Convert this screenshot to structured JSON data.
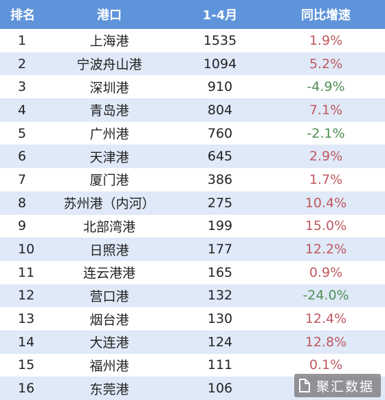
{
  "table": {
    "headers": [
      "排名",
      "港口",
      "1-4月",
      "同比增速"
    ],
    "rows": [
      {
        "rank": "1",
        "port": "上海港",
        "value": "1535",
        "growth": "1.9%",
        "dir": "pos"
      },
      {
        "rank": "2",
        "port": "宁波舟山港",
        "value": "1094",
        "growth": "5.2%",
        "dir": "pos"
      },
      {
        "rank": "3",
        "port": "深圳港",
        "value": "910",
        "growth": "-4.9%",
        "dir": "neg"
      },
      {
        "rank": "4",
        "port": "青岛港",
        "value": "804",
        "growth": "7.1%",
        "dir": "pos"
      },
      {
        "rank": "5",
        "port": "广州港",
        "value": "760",
        "growth": "-2.1%",
        "dir": "neg"
      },
      {
        "rank": "6",
        "port": "天津港",
        "value": "645",
        "growth": "2.9%",
        "dir": "pos"
      },
      {
        "rank": "7",
        "port": "厦门港",
        "value": "386",
        "growth": "1.7%",
        "dir": "pos"
      },
      {
        "rank": "8",
        "port": "苏州港（内河）",
        "value": "275",
        "growth": "10.4%",
        "dir": "pos"
      },
      {
        "rank": "9",
        "port": "北部湾港",
        "value": "199",
        "growth": "15.0%",
        "dir": "pos"
      },
      {
        "rank": "10",
        "port": "日照港",
        "value": "177",
        "growth": "12.2%",
        "dir": "pos"
      },
      {
        "rank": "11",
        "port": "连云港港",
        "value": "165",
        "growth": "0.9%",
        "dir": "pos"
      },
      {
        "rank": "12",
        "port": "营口港",
        "value": "132",
        "growth": "-24.0%",
        "dir": "neg"
      },
      {
        "rank": "13",
        "port": "烟台港",
        "value": "130",
        "growth": "12.4%",
        "dir": "pos"
      },
      {
        "rank": "14",
        "port": "大连港",
        "value": "124",
        "growth": "12.8%",
        "dir": "pos"
      },
      {
        "rank": "15",
        "port": "福州港",
        "value": "111",
        "growth": "0.1%",
        "dir": "pos"
      },
      {
        "rank": "16",
        "port": "东莞港",
        "value": "106",
        "growth": "",
        "dir": "pos"
      }
    ]
  },
  "watermark": {
    "text": "聚汇数据",
    "icon": "watermark-logo-icon"
  },
  "colors": {
    "header_bg": "#5f94da",
    "alt_row_bg": "#dfe9f8",
    "positive": "#c0585e",
    "negative": "#4e8f52"
  }
}
